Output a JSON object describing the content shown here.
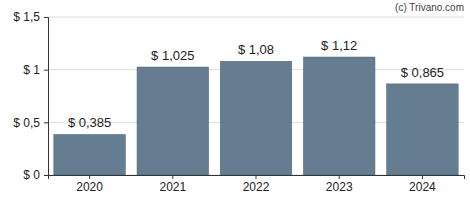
{
  "chart_data": {
    "type": "bar",
    "annotations": [
      "(c) Trivano.com"
    ],
    "categories": [
      "2020",
      "2021",
      "2022",
      "2023",
      "2024"
    ],
    "values": [
      0.385,
      1.025,
      1.08,
      1.12,
      0.865
    ],
    "value_labels": [
      "$ 0,385",
      "$ 1,025",
      "$ 1,08",
      "$ 1,12",
      "$ 0,865"
    ],
    "data_labels": true,
    "color": "#647d91",
    "ylim": [
      0,
      1.5
    ],
    "yticks": [
      {
        "value": 0,
        "label": "$ 0"
      },
      {
        "value": 0.5,
        "label": "$ 0,5"
      },
      {
        "value": 1,
        "label": "$ 1"
      },
      {
        "value": 1.5,
        "label": "$ 1,5"
      }
    ],
    "grid": true
  }
}
